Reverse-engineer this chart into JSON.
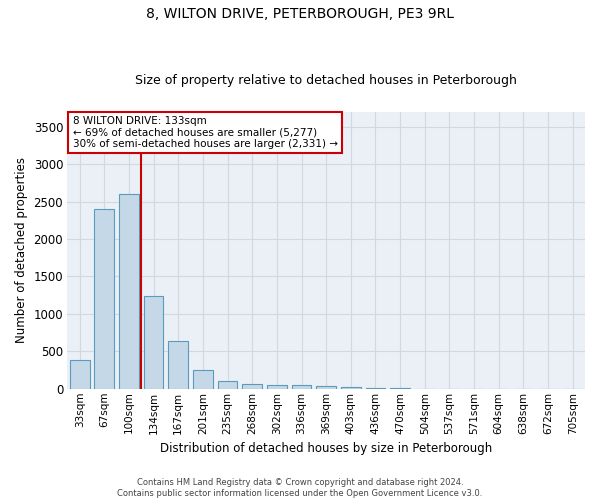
{
  "title": "8, WILTON DRIVE, PETERBOROUGH, PE3 9RL",
  "subtitle": "Size of property relative to detached houses in Peterborough",
  "xlabel": "Distribution of detached houses by size in Peterborough",
  "ylabel": "Number of detached properties",
  "categories": [
    "33sqm",
    "67sqm",
    "100sqm",
    "134sqm",
    "167sqm",
    "201sqm",
    "235sqm",
    "268sqm",
    "302sqm",
    "336sqm",
    "369sqm",
    "403sqm",
    "436sqm",
    "470sqm",
    "504sqm",
    "537sqm",
    "571sqm",
    "604sqm",
    "638sqm",
    "672sqm",
    "705sqm"
  ],
  "values": [
    390,
    2400,
    2600,
    1240,
    640,
    255,
    100,
    60,
    55,
    50,
    40,
    30,
    10,
    5,
    3,
    2,
    1,
    1,
    1,
    0,
    0
  ],
  "bar_color": "#c5d8e8",
  "bar_edge_color": "#5a9abf",
  "bar_edge_width": 0.8,
  "red_line_bar_index": 3,
  "annotation_title": "8 WILTON DRIVE: 133sqm",
  "annotation_line1": "← 69% of detached houses are smaller (5,277)",
  "annotation_line2": "30% of semi-detached houses are larger (2,331) →",
  "annotation_box_color": "#ffffff",
  "annotation_box_edge_color": "#cc0000",
  "ylim": [
    0,
    3700
  ],
  "yticks": [
    0,
    500,
    1000,
    1500,
    2000,
    2500,
    3000,
    3500
  ],
  "grid_color": "#d0d8e0",
  "background_color": "#eaf0f6",
  "footer1": "Contains HM Land Registry data © Crown copyright and database right 2024.",
  "footer2": "Contains public sector information licensed under the Open Government Licence v3.0."
}
